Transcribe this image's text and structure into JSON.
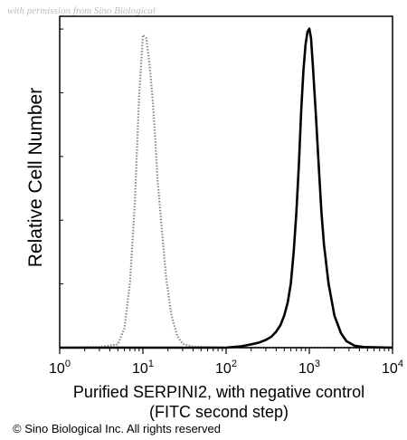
{
  "watermark": "with permission from Sino Biological",
  "copyright": "© Sino Biological Inc. All rights reserved",
  "chart_data": {
    "type": "line",
    "title": "",
    "ylabel": "Relative Cell Number",
    "xlabel_line1": "Purified SERPINI2, with negative control",
    "xlabel_line2": "(FITC second step)",
    "xscale": "log",
    "xlim": [
      1,
      10000
    ],
    "ylim": [
      0,
      1
    ],
    "grid": false,
    "xticks": [
      {
        "value": 1,
        "base": "10",
        "exp": "0"
      },
      {
        "value": 10,
        "base": "10",
        "exp": "1"
      },
      {
        "value": 100,
        "base": "10",
        "exp": "2"
      },
      {
        "value": 1000,
        "base": "10",
        "exp": "3"
      },
      {
        "value": 10000,
        "base": "10",
        "exp": "4"
      }
    ],
    "series": [
      {
        "color": "#8a8a8a",
        "style": "dotted",
        "x": [
          1,
          3,
          5,
          6,
          7,
          8,
          9,
          10,
          11,
          12,
          13,
          14,
          15,
          17,
          19,
          22,
          26,
          30,
          40,
          100,
          1000,
          10000
        ],
        "y": [
          0,
          0.002,
          0.01,
          0.06,
          0.2,
          0.45,
          0.78,
          0.97,
          0.96,
          0.88,
          0.78,
          0.66,
          0.52,
          0.36,
          0.22,
          0.1,
          0.035,
          0.012,
          0.003,
          0,
          0,
          0
        ]
      },
      {
        "color": "#000000",
        "style": "solid",
        "x": [
          1,
          10,
          100,
          150,
          200,
          250,
          300,
          350,
          400,
          450,
          500,
          550,
          600,
          650,
          700,
          750,
          800,
          850,
          900,
          950,
          1000,
          1050,
          1100,
          1200,
          1300,
          1400,
          1500,
          1700,
          2000,
          2400,
          2800,
          3500,
          4500,
          10000
        ],
        "y": [
          0,
          0,
          0,
          0.004,
          0.01,
          0.016,
          0.024,
          0.034,
          0.05,
          0.07,
          0.1,
          0.14,
          0.2,
          0.3,
          0.42,
          0.57,
          0.74,
          0.86,
          0.94,
          0.98,
          0.99,
          0.96,
          0.88,
          0.72,
          0.56,
          0.42,
          0.32,
          0.2,
          0.1,
          0.045,
          0.02,
          0.006,
          0.002,
          0
        ]
      }
    ]
  }
}
